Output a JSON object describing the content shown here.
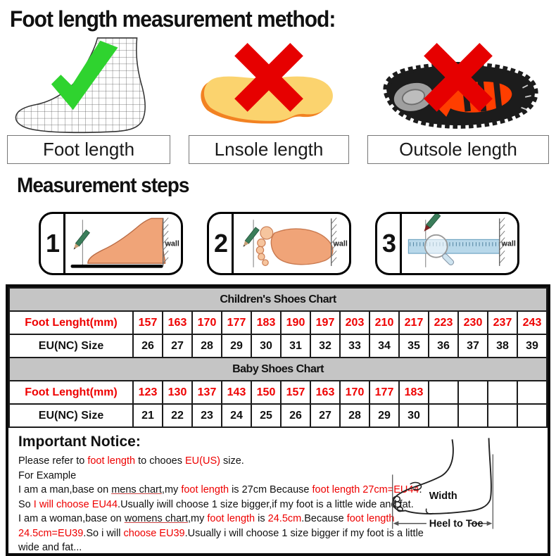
{
  "header": {
    "title": "Foot length measurement method:"
  },
  "methods": [
    {
      "label": "Foot length",
      "icon": "wireframe-foot",
      "verdict": "correct"
    },
    {
      "label": "Lnsole length",
      "icon": "insole",
      "verdict": "wrong"
    },
    {
      "label": "Outsole length",
      "icon": "outsole",
      "verdict": "wrong"
    }
  ],
  "steps_section": {
    "title": "Measurement steps",
    "steps": [
      {
        "number": "1",
        "wall_label": "wall"
      },
      {
        "number": "2",
        "wall_label": "wall"
      },
      {
        "number": "3",
        "wall_label": "wall"
      }
    ]
  },
  "chart_data": [
    {
      "type": "table",
      "title": "Children's Shoes Chart",
      "rows": [
        {
          "label": "Foot Lenght(mm)",
          "color": "red",
          "values": [
            "157",
            "163",
            "170",
            "177",
            "183",
            "190",
            "197",
            "203",
            "210",
            "217",
            "223",
            "230",
            "237",
            "243"
          ]
        },
        {
          "label": "EU(NC) Size",
          "color": "black",
          "values": [
            "26",
            "27",
            "28",
            "29",
            "30",
            "31",
            "32",
            "33",
            "34",
            "35",
            "36",
            "37",
            "38",
            "39"
          ]
        }
      ]
    },
    {
      "type": "table",
      "title": "Baby Shoes Chart",
      "rows": [
        {
          "label": "Foot Lenght(mm)",
          "color": "red",
          "values": [
            "123",
            "130",
            "137",
            "143",
            "150",
            "157",
            "163",
            "170",
            "177",
            "183",
            "",
            "",
            "",
            ""
          ]
        },
        {
          "label": "EU(NC) Size",
          "color": "black",
          "values": [
            "21",
            "22",
            "23",
            "24",
            "25",
            "26",
            "27",
            "28",
            "29",
            "30",
            "",
            "",
            "",
            ""
          ]
        }
      ]
    }
  ],
  "notice": {
    "title": "Important Notice:",
    "lines": [
      [
        {
          "t": "Please refer to "
        },
        {
          "t": "foot length",
          "c": 1
        },
        {
          "t": " to chooes "
        },
        {
          "t": "EU(US)",
          "c": 1
        },
        {
          "t": " size."
        }
      ],
      [
        {
          "t": "For Example"
        }
      ],
      [
        {
          "t": "I am a man,base on "
        },
        {
          "t": "mens chart",
          "u": 1
        },
        {
          "t": ",my "
        },
        {
          "t": "foot length",
          "c": 1
        },
        {
          "t": " is 27cm Because "
        },
        {
          "t": "foot length 27cm=EU44",
          "c": 1
        },
        {
          "t": "."
        }
      ],
      [
        {
          "t": "So "
        },
        {
          "t": "I will choose EU44",
          "c": 1
        },
        {
          "t": ".Usually iwill choose 1 size bigger,if my foot is a little wide and fat."
        }
      ],
      [
        {
          "t": "I am a woman,base on "
        },
        {
          "t": "womens chart",
          "u": 1
        },
        {
          "t": ",my "
        },
        {
          "t": "foot length",
          "c": 1
        },
        {
          "t": " is "
        },
        {
          "t": "24.5cm",
          "c": 1
        },
        {
          "t": ".Because "
        },
        {
          "t": "foot length",
          "c": 1
        }
      ],
      [
        {
          "t": "24.5cm=EU39",
          "c": 1
        },
        {
          "t": ".So i will "
        },
        {
          "t": "choose EU39",
          "c": 1
        },
        {
          "t": ".Usually i will choose 1 size bigger if my foot is a little"
        }
      ],
      [
        {
          "t": "wide and fat..."
        }
      ]
    ]
  },
  "foot_diagram": {
    "width_label": "Width",
    "heel_to_toe_label": "Heel to Toe"
  },
  "colors": {
    "accent_red": "#ee0000",
    "check_green": "#2fd32f",
    "band_gray": "#c5c5c5",
    "insole_yellow": "#fbd36e",
    "insole_edge_orange": "#f28222",
    "ruler_blue": "#b8d8ea"
  }
}
